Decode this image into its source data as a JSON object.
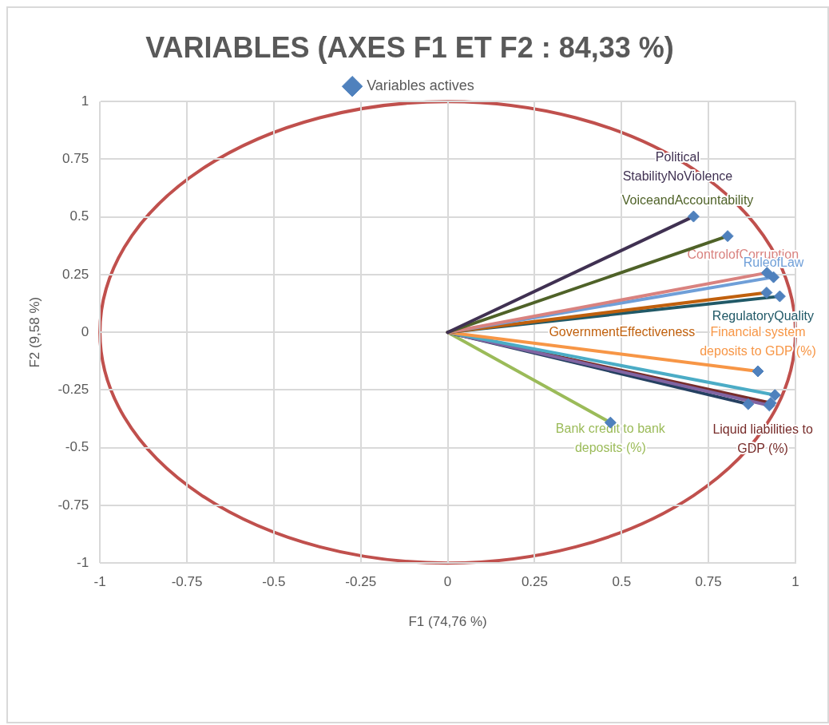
{
  "chart_data": {
    "type": "line",
    "title": "VARIABLES (AXES F1 ET F2 : 84,33 %)",
    "xlabel": "F1 (74,76 %)",
    "ylabel": "F2 (9,58 %)",
    "xlim": [
      -1,
      1
    ],
    "ylim": [
      -1,
      1
    ],
    "xticks": [
      -1,
      -0.75,
      -0.5,
      -0.25,
      0,
      0.25,
      0.5,
      0.75,
      1
    ],
    "yticks": [
      -1,
      -0.75,
      -0.5,
      -0.25,
      0,
      0.25,
      0.5,
      0.75,
      1
    ],
    "grid": true,
    "legend": "top",
    "marker": "none",
    "series": [
      {
        "name": "Political StabilityNoViolence",
        "color": "#403152",
        "x": [
          0,
          0.707
        ],
        "values": [
          0,
          0.502
        ]
      },
      {
        "name": "VoiceandAccountability",
        "color": "#4f6228",
        "x": [
          0,
          0.805
        ],
        "values": [
          0,
          0.417
        ]
      },
      {
        "name": "ControlofCorruption",
        "color": "#d9827f",
        "x": [
          0,
          0.918
        ],
        "values": [
          0,
          0.258
        ]
      },
      {
        "name": "RuleofLaw",
        "color": "#6f9fd8",
        "x": [
          0,
          0.937
        ],
        "values": [
          0,
          0.239
        ]
      },
      {
        "name": "GovernmentEffectiveness",
        "color": "#c0600d",
        "x": [
          0,
          0.917
        ],
        "values": [
          0,
          0.172
        ]
      },
      {
        "name": "RegulatoryQuality",
        "color": "#215967",
        "x": [
          0,
          0.955
        ],
        "values": [
          0,
          0.156
        ]
      },
      {
        "name": "Financial system deposits to GDP (%)",
        "color": "#f79646",
        "x": [
          0,
          0.892
        ],
        "values": [
          0,
          -0.169
        ]
      },
      {
        "color": "#4bacc6",
        "x": [
          0,
          0.941
        ],
        "values": [
          0,
          -0.272
        ]
      },
      {
        "color": "#8064a2",
        "x": [
          0,
          0.925
        ],
        "values": [
          0,
          -0.317
        ]
      },
      {
        "name": "Liquid liabilities to GDP (%)",
        "color": "#772c2a",
        "x": [
          0,
          0.929
        ],
        "values": [
          0,
          -0.306
        ]
      },
      {
        "color": "#254061",
        "x": [
          0,
          0.864
        ],
        "values": [
          0,
          -0.311
        ]
      },
      {
        "name": "Bank credit to bank deposits (%)",
        "color": "#9bbb59",
        "x": [
          0,
          0.468
        ],
        "values": [
          0,
          -0.391
        ]
      },
      {
        "type": "scatter",
        "name": "Variables actives",
        "color": "#4f81bd",
        "marker": "diamond",
        "x": [
          0.707,
          0.805,
          0.918,
          0.937,
          0.917,
          0.955,
          0.892,
          0.941,
          0.925,
          0.929,
          0.864,
          0.468
        ],
        "values": [
          0.502,
          0.417,
          0.258,
          0.239,
          0.172,
          0.156,
          -0.169,
          -0.272,
          -0.317,
          -0.306,
          -0.311,
          -0.391
        ]
      }
    ]
  }
}
